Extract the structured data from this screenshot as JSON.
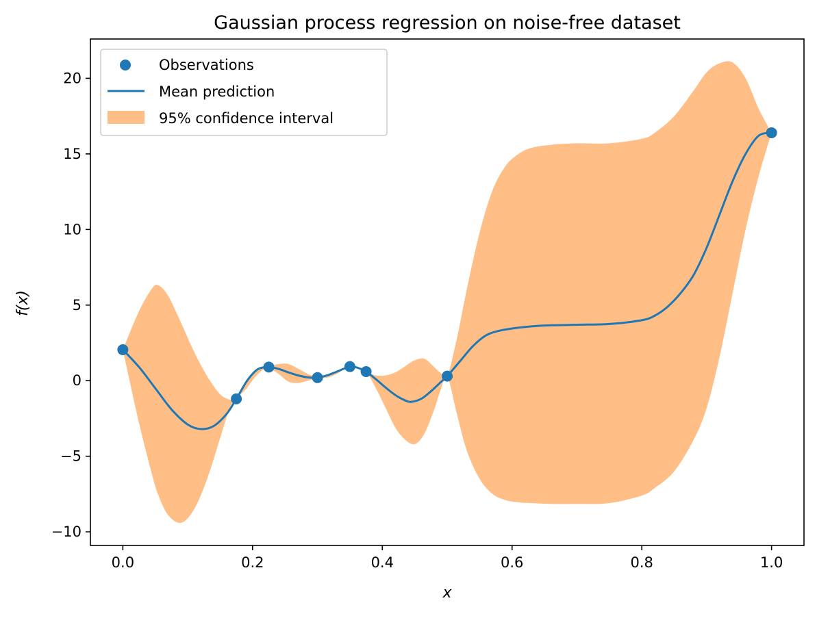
{
  "chart_data": {
    "type": "line",
    "title": "Gaussian process regression on noise-free dataset",
    "xlabel": "x",
    "ylabel": "f(x)",
    "xlim": [
      -0.05,
      1.05
    ],
    "ylim": [
      -10.9,
      22.6
    ],
    "xticks": [
      0.0,
      0.2,
      0.4,
      0.6,
      0.8,
      1.0
    ],
    "xtick_labels": [
      "0.0",
      "0.2",
      "0.4",
      "0.6",
      "0.8",
      "1.0"
    ],
    "yticks": [
      -10,
      -5,
      0,
      5,
      10,
      15,
      20
    ],
    "ytick_labels": [
      "−10",
      "−5",
      "0",
      "5",
      "10",
      "15",
      "20"
    ],
    "grid": false,
    "legend": {
      "position": "upper-left",
      "entries": [
        "Observations",
        "Mean prediction",
        "95% confidence interval"
      ]
    },
    "colors": {
      "observations": "#1f77b4",
      "mean": "#1f77b4",
      "interval": "#ffbe86"
    },
    "observations": {
      "name": "Observations",
      "x": [
        0.0,
        0.175,
        0.225,
        0.3,
        0.35,
        0.375,
        0.5,
        1.0
      ],
      "y": [
        2.05,
        -1.2,
        0.9,
        0.2,
        0.93,
        0.6,
        0.3,
        16.4
      ]
    },
    "mean_prediction": {
      "name": "Mean prediction",
      "x": [
        0.0,
        0.025,
        0.05,
        0.075,
        0.1,
        0.12,
        0.14,
        0.16,
        0.175,
        0.19,
        0.2,
        0.21,
        0.225,
        0.24,
        0.255,
        0.27,
        0.285,
        0.3,
        0.315,
        0.33,
        0.35,
        0.362,
        0.375,
        0.39,
        0.405,
        0.42,
        0.435,
        0.445,
        0.46,
        0.475,
        0.49,
        0.5,
        0.52,
        0.54,
        0.56,
        0.58,
        0.6,
        0.62,
        0.65,
        0.7,
        0.75,
        0.8,
        0.82,
        0.84,
        0.86,
        0.88,
        0.9,
        0.92,
        0.94,
        0.96,
        0.98,
        1.0
      ],
      "y": [
        2.05,
        0.9,
        -0.5,
        -1.9,
        -2.9,
        -3.2,
        -3.0,
        -2.2,
        -1.2,
        -0.1,
        0.45,
        0.8,
        0.9,
        0.78,
        0.55,
        0.35,
        0.22,
        0.2,
        0.35,
        0.6,
        0.93,
        0.85,
        0.6,
        0.1,
        -0.45,
        -0.95,
        -1.3,
        -1.4,
        -1.2,
        -0.7,
        -0.1,
        0.3,
        1.3,
        2.3,
        3.0,
        3.3,
        3.45,
        3.55,
        3.65,
        3.7,
        3.75,
        4.0,
        4.3,
        4.9,
        5.8,
        7.0,
        8.8,
        11.0,
        13.2,
        15.0,
        16.2,
        16.4
      ]
    },
    "confidence_interval": {
      "name": "95% confidence interval",
      "x": [
        0.0,
        0.025,
        0.045,
        0.055,
        0.07,
        0.09,
        0.11,
        0.13,
        0.15,
        0.165,
        0.175,
        0.19,
        0.205,
        0.22,
        0.225,
        0.24,
        0.255,
        0.27,
        0.285,
        0.3,
        0.315,
        0.33,
        0.34,
        0.35,
        0.362,
        0.375,
        0.39,
        0.405,
        0.42,
        0.435,
        0.45,
        0.465,
        0.48,
        0.49,
        0.5,
        0.515,
        0.53,
        0.55,
        0.57,
        0.59,
        0.61,
        0.63,
        0.66,
        0.7,
        0.75,
        0.8,
        0.82,
        0.85,
        0.88,
        0.9,
        0.92,
        0.94,
        0.96,
        0.98,
        1.0
      ],
      "upper": [
        2.05,
        4.6,
        6.1,
        6.3,
        5.6,
        3.8,
        1.9,
        0.3,
        -0.9,
        -1.25,
        -1.2,
        -0.2,
        0.7,
        0.95,
        0.95,
        1.1,
        1.1,
        0.8,
        0.45,
        0.25,
        0.4,
        0.65,
        0.8,
        0.93,
        0.85,
        0.6,
        0.35,
        0.35,
        0.55,
        0.95,
        1.35,
        1.45,
        0.9,
        0.5,
        0.3,
        2.8,
        6.0,
        9.8,
        12.6,
        14.2,
        15.0,
        15.4,
        15.6,
        15.7,
        15.7,
        16.0,
        16.4,
        17.5,
        19.2,
        20.4,
        21.0,
        21.05,
        20.0,
        18.0,
        16.4
      ],
      "lower": [
        2.05,
        -2.8,
        -6.2,
        -7.6,
        -8.9,
        -9.4,
        -8.5,
        -6.5,
        -3.8,
        -1.8,
        -1.2,
        -0.55,
        0.3,
        0.85,
        0.85,
        0.45,
        -0.05,
        -0.15,
        0.0,
        0.15,
        0.2,
        0.45,
        0.75,
        0.93,
        0.85,
        0.6,
        -0.5,
        -1.8,
        -3.1,
        -3.9,
        -4.2,
        -3.5,
        -1.9,
        -0.6,
        0.3,
        -2.2,
        -4.6,
        -6.5,
        -7.5,
        -7.9,
        -8.05,
        -8.1,
        -8.15,
        -8.15,
        -8.1,
        -7.6,
        -7.1,
        -6.0,
        -3.9,
        -1.8,
        1.6,
        5.8,
        10.0,
        13.5,
        16.4
      ]
    }
  }
}
